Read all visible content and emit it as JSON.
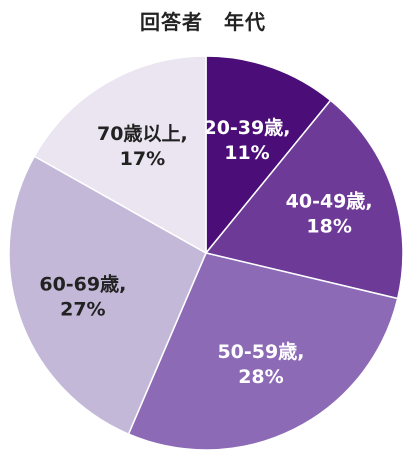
{
  "chart_data": {
    "type": "pie",
    "title": "回答者　年代",
    "slices": [
      {
        "label": "20-39歳,",
        "value": 11,
        "value_label": "11%",
        "color": "#4b0d78",
        "text_color": "#ffffff"
      },
      {
        "label": "40-49歳,",
        "value": 18,
        "value_label": "18%",
        "color": "#6e3a98",
        "text_color": "#ffffff"
      },
      {
        "label": "50-59歳,",
        "value": 28,
        "value_label": "28%",
        "color": "#8c6ab6",
        "text_color": "#ffffff"
      },
      {
        "label": "60-69歳,",
        "value": 27,
        "value_label": "27%",
        "color": "#c4b8d8",
        "text_color": "#222222"
      },
      {
        "label": "70歳以上,",
        "value": 17,
        "value_label": "17%",
        "color": "#ebe4f1",
        "text_color": "#222222"
      }
    ]
  }
}
